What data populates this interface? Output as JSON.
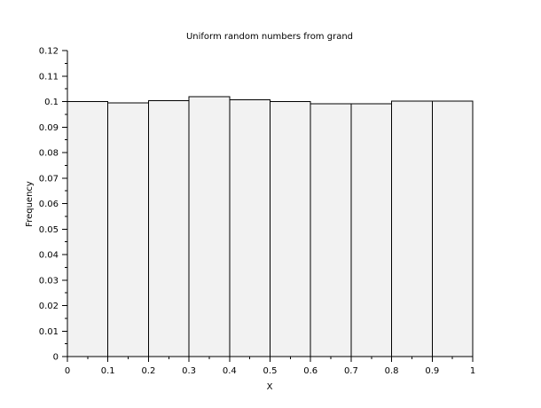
{
  "colors": {
    "bar_fill": "#f2f2f2",
    "bar_stroke": "#000000",
    "axis": "#000000",
    "background": "#ffffff"
  },
  "chart_data": {
    "type": "bar",
    "title": "Uniform random numbers from grand",
    "xlabel": "X",
    "ylabel": "Frequency",
    "bin_edges": [
      0,
      0.1,
      0.2,
      0.3,
      0.4,
      0.5,
      0.6,
      0.7,
      0.8,
      0.9,
      1
    ],
    "values": [
      0.1,
      0.0995,
      0.1003,
      0.102,
      0.1007,
      0.1,
      0.0992,
      0.0991,
      0.1002,
      0.1002
    ],
    "xlim": [
      0,
      1
    ],
    "ylim": [
      0,
      0.12
    ],
    "x_ticks": [
      "0",
      "0.1",
      "0.2",
      "0.3",
      "0.4",
      "0.5",
      "0.6",
      "0.7",
      "0.8",
      "0.9",
      "1"
    ],
    "y_ticks": [
      "0",
      "0.01",
      "0.02",
      "0.03",
      "0.04",
      "0.05",
      "0.06",
      "0.07",
      "0.08",
      "0.09",
      "0.1",
      "0.11",
      "0.12"
    ],
    "grid": false,
    "legend": "none"
  }
}
